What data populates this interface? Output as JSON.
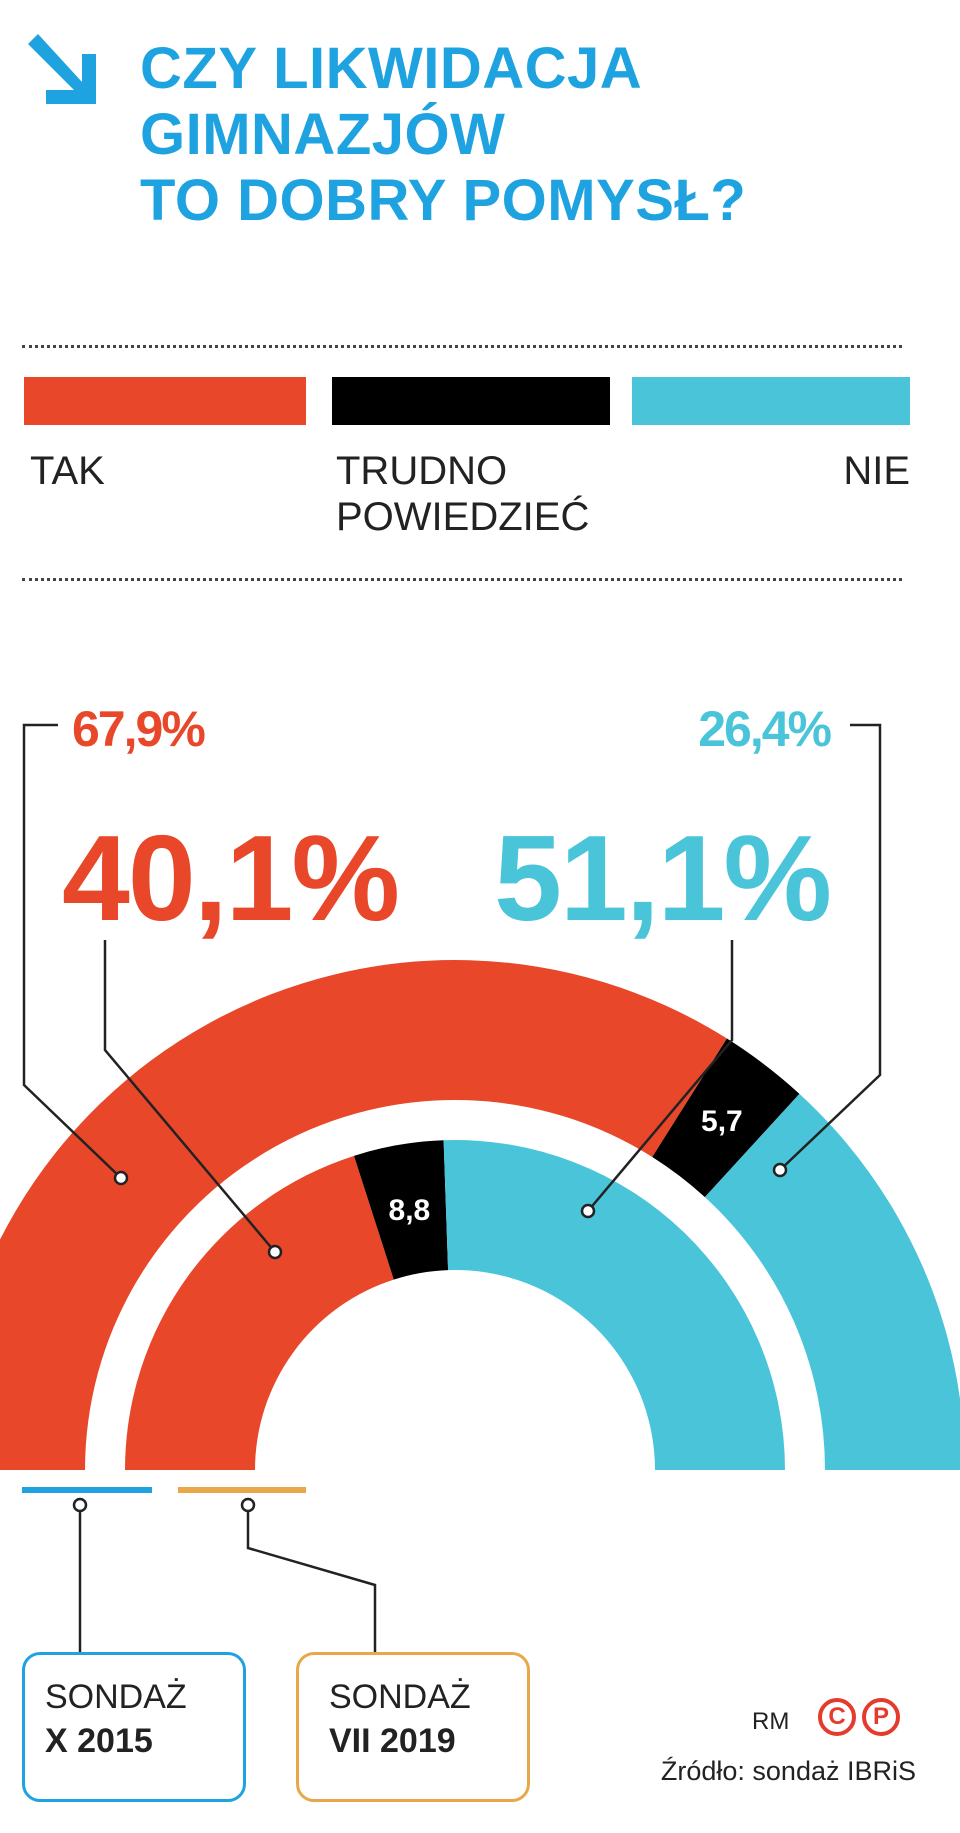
{
  "title": {
    "lines": [
      "CZY LIKWIDACJA",
      "GIMNAZJÓW",
      "TO DOBRY POMYSŁ?"
    ]
  },
  "colors": {
    "tak": "#e8472a",
    "trudno": "#000000",
    "nie": "#4ac4d9",
    "title": "#1fa3e0",
    "survey2015": "#1fa3e0",
    "survey2019": "#e8a84a"
  },
  "legend": {
    "tak": "TAK",
    "trudno_line1": "TRUDNO",
    "trudno_line2": "POWIEDZIEĆ",
    "nie": "NIE"
  },
  "chart_data": {
    "type": "pie",
    "subtype": "nested half-donut",
    "title": "CZY LIKWIDACJA GIMNAZJÓW TO DOBRY POMYSŁ?",
    "categories": [
      "TAK",
      "TRUDNO POWIEDZIEĆ",
      "NIE"
    ],
    "series": [
      {
        "name": "SONDAŻ X 2015",
        "ring": "outer",
        "values": [
          67.9,
          5.7,
          26.4
        ],
        "labels": [
          "67,9%",
          "5,7",
          "26,4%"
        ]
      },
      {
        "name": "SONDAŻ VII 2019",
        "ring": "inner",
        "values": [
          40.1,
          8.8,
          51.1
        ],
        "labels": [
          "40,1%",
          "8,8",
          "51,1%"
        ]
      }
    ]
  },
  "surveys": {
    "s2015_line1": "SONDAŻ",
    "s2015_line2": "X 2015",
    "s2019_line1": "SONDAŻ",
    "s2019_line2": "VII 2019"
  },
  "footer": {
    "author": "RM",
    "logo_left": "C",
    "logo_right": "P",
    "source": "Źródło: sondaż IBRiS"
  }
}
